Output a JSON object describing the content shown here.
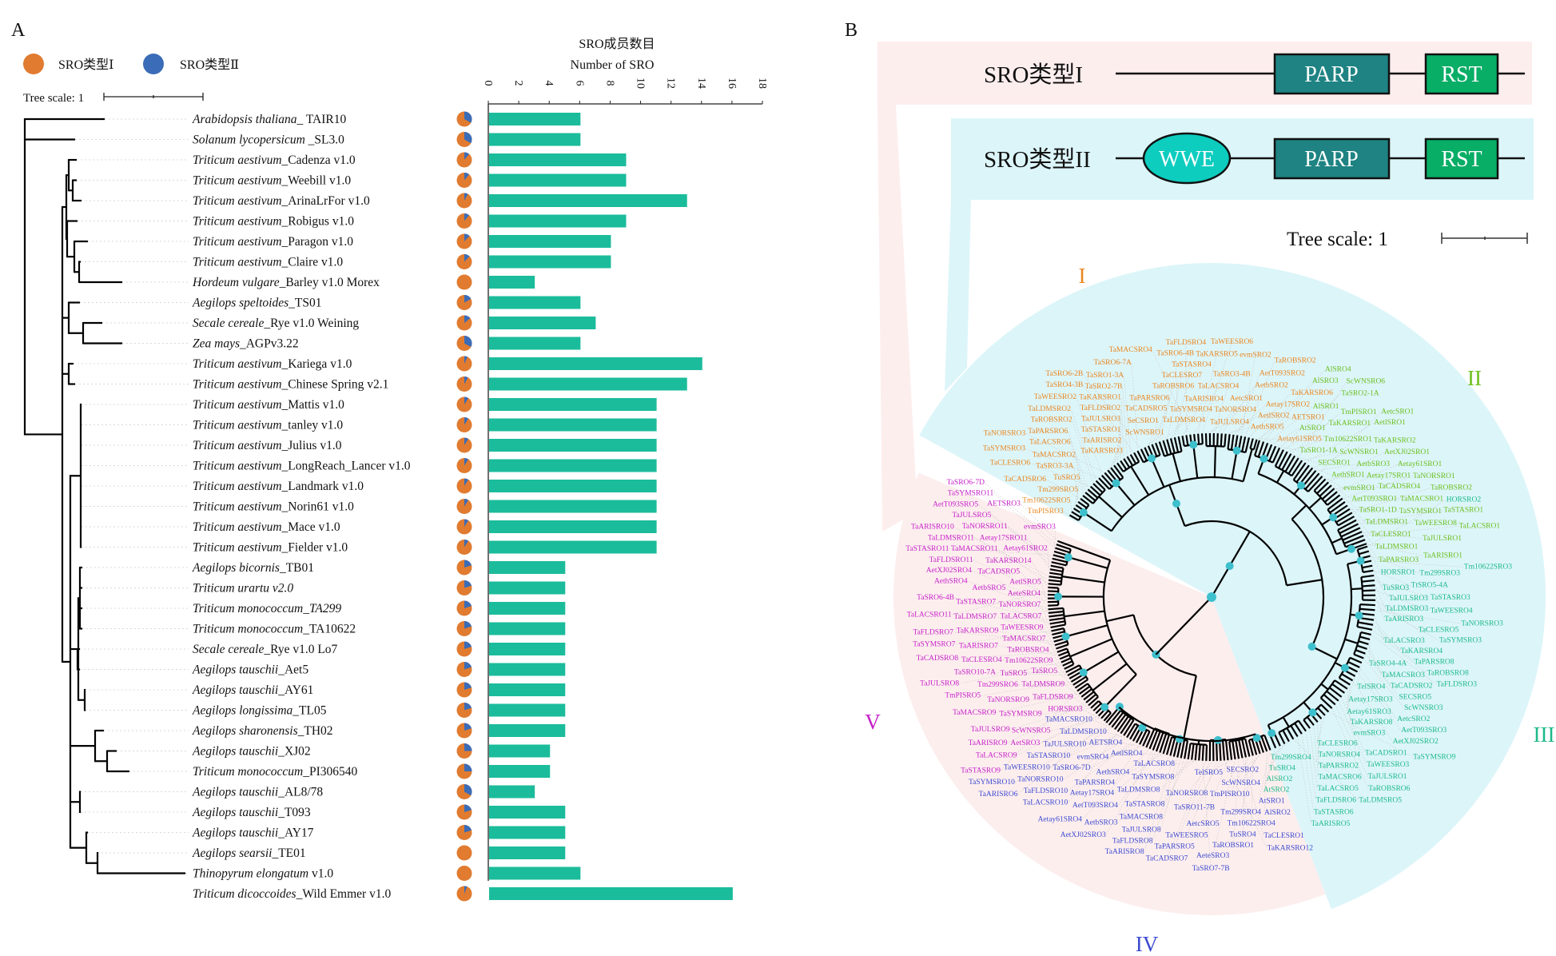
{
  "panel_a": {
    "label": "A",
    "legend": [
      {
        "label": "SRO类型Ⅰ",
        "color": "#e07b30"
      },
      {
        "label": "SRO类型Ⅱ",
        "color": "#3b6cb7"
      }
    ],
    "tree_scale": "Tree scale: 1"
  },
  "chart_data": {
    "type": "bar",
    "title": "SRO成员数目",
    "subtitle": "Number of SRO",
    "xlabel": "Number of SRO",
    "xlim": [
      0,
      18
    ],
    "ticks": [
      "0",
      "2",
      "4",
      "6",
      "8",
      "10",
      "12",
      "14",
      "16",
      "18"
    ],
    "bar_color": "#1bbc9b",
    "categories": [
      {
        "italic": "Arabidopsis thaliana",
        "roman": "_ TAIR10"
      },
      {
        "italic": "Solanum lycopersicum",
        "roman": " _SL3.0"
      },
      {
        "italic": "Triticum aestivum",
        "roman": "_Cadenza v1.0"
      },
      {
        "italic": "Triticum aestivum",
        "roman": "_Weebill v1.0"
      },
      {
        "italic": "Triticum aestivum",
        "roman": "_ArinaLrFor v1.0"
      },
      {
        "italic": "Triticum aestivum",
        "roman": "_Robigus v1.0"
      },
      {
        "italic": "Triticum aestivum",
        "roman": "_Paragon v1.0"
      },
      {
        "italic": "Triticum aestivum",
        "roman": "_Claire v1.0"
      },
      {
        "italic": "Hordeum vulgare",
        "roman": "_Barley v1.0 Morex"
      },
      {
        "italic": "Aegilops speltoides",
        "roman": "_TS01"
      },
      {
        "italic": "Secale cereale",
        "roman": "_Rye v1.0 Weining"
      },
      {
        "italic": "Zea mays",
        "roman": "_AGPv3.22"
      },
      {
        "italic": "Triticum aestivum",
        "roman": "_Kariega v1.0"
      },
      {
        "italic": "Triticum aestivum",
        "roman": "_Chinese Spring v2.1"
      },
      {
        "italic": "Triticum aestivum",
        "roman": "_Mattis v1.0"
      },
      {
        "italic": "Triticum aestivum",
        "roman": "_tanley v1.0"
      },
      {
        "italic": "Triticum aestivum",
        "roman": "_Julius v1.0"
      },
      {
        "italic": "Triticum aestivum",
        "roman": "_LongReach_Lancer v1.0"
      },
      {
        "italic": "Triticum aestivum",
        "roman": "_Landmark v1.0"
      },
      {
        "italic": "Triticum aestivum",
        "roman": "_Norin61 v1.0"
      },
      {
        "italic": "Triticum aestivum",
        "roman": "_Mace v1.0"
      },
      {
        "italic": "Triticum aestivum",
        "roman": "_Fielder v1.0"
      },
      {
        "italic": "Aegilops bicornis",
        "roman": "_TB01"
      },
      {
        "italic": "Triticum urartu v2.0",
        "roman": ""
      },
      {
        "italic": "Triticum monococcum_TA299",
        "roman": ""
      },
      {
        "italic": "Triticum monococcum",
        "roman": "_TA10622"
      },
      {
        "italic": "Secale cereale",
        "roman": "_Rye v1.0 Lo7"
      },
      {
        "italic": "Aegilops tauschii",
        "roman": "_Aet5"
      },
      {
        "italic": "Aegilops tauschii",
        "roman": "_AY61"
      },
      {
        "italic": "Aegilops longissima",
        "roman": "_TL05"
      },
      {
        "italic": "Aegilops sharonensis",
        "roman": "_TH02"
      },
      {
        "italic": "Aegilops tauschii",
        "roman": "_XJ02"
      },
      {
        "italic": "Triticum monococcum",
        "roman": "_PI306540"
      },
      {
        "italic": "Aegilops tauschii",
        "roman": "_AL8/78"
      },
      {
        "italic": "Aegilops tauschii",
        "roman": "_T093"
      },
      {
        "italic": "Aegilops tauschii",
        "roman": "_AY17"
      },
      {
        "italic": "Aegilops searsii",
        "roman": "_TE01"
      },
      {
        "italic": "Thinopyrum elongatum",
        "roman": " v1.0"
      },
      {
        "italic": "Triticum dicoccoides",
        "roman": "_Wild Emmer v1.0"
      }
    ],
    "values": [
      6,
      6,
      9,
      9,
      13,
      9,
      8,
      8,
      3,
      6,
      7,
      6,
      14,
      13,
      11,
      11,
      11,
      11,
      11,
      11,
      11,
      11,
      5,
      5,
      5,
      5,
      5,
      5,
      5,
      5,
      5,
      4,
      4,
      3,
      5,
      5,
      5,
      6,
      16
    ],
    "type_II_fraction": [
      0.33,
      0.33,
      0.11,
      0.11,
      0.08,
      0.11,
      0.12,
      0.12,
      0,
      0.17,
      0.14,
      0.33,
      0.07,
      0.08,
      0.09,
      0.09,
      0.09,
      0.09,
      0.09,
      0.09,
      0.09,
      0.09,
      0.2,
      0.2,
      0.2,
      0.2,
      0.2,
      0.2,
      0.2,
      0.2,
      0.2,
      0.25,
      0.25,
      0.33,
      0.2,
      0.2,
      0,
      0,
      0.06
    ]
  },
  "panel_b": {
    "label": "B",
    "type_I": {
      "label": "SRO类型I",
      "domains": [
        "PARP",
        "RST"
      ]
    },
    "type_II": {
      "label": "SRO类型II",
      "domains": [
        "WWE",
        "PARP",
        "RST"
      ]
    },
    "tree_scale": "Tree scale: 1",
    "colors": {
      "parp": "#1e8382",
      "rst": "#08ad66",
      "wwe": "#0dcdbf",
      "node": "#3dbfcc",
      "pink": "#fdeeee",
      "cyan": "#dcf5f9"
    },
    "clades": [
      {
        "name": "I",
        "color": "#e9861f",
        "leaves": [
          "TmPISRO3",
          "Tm10622SRO5",
          "Tm299SRO5",
          "TuSRO5",
          "TaSRO3-3A",
          "TaCADSRO6",
          "TaMACSRO2",
          "TaLACSRO6",
          "TaPARSRO6",
          "TaCLESRO6",
          "TaROBSRO2",
          "TaLDMSRO2",
          "TaSYMSRO3",
          "TaWEESRO2",
          "TaNORSRO3",
          "TaKARSRO3",
          "TaARISRO2",
          "TaSTASRO1",
          "TaJULSRO3",
          "TaFLDSRO2",
          "TaKARSRO1",
          "TaSRO2-7B",
          "TaSRO1-3A",
          "TaSRO4-3B",
          "TaSRO6-7A",
          "TaSRO6-2B",
          "ScWNSRO1",
          "SeCSRO1",
          "TaCADSRO5",
          "TaPARSRO6",
          "TaROBSRO6",
          "TaLDMSRO4",
          "TaCLESRO7",
          "TaSYMSRO4",
          "TaSTASRO4",
          "TaSRO6-4B",
          "TaARISRO4",
          "TaFLDSRO4",
          "TaMACSRO4",
          "TaLACSRO4",
          "TaKARSRO5",
          "TaWEESRO6",
          "TaJULSRO4",
          "TaNORSRO4",
          "TaSRO3-4B",
          "AetcSRO1",
          "AetbSRO2",
          "AethSRO5",
          "AetlSRO2",
          "Aetay17SRO2",
          "AetT093SRO2",
          "evmSRO2",
          "TaROBSRO2",
          "TaKARSRO6",
          "Aetay61SRO5",
          "AETSRO1"
        ]
      },
      {
        "name": "II",
        "color": "#6cbf1e",
        "leaves": [
          "AlSRO3",
          "AlSRO4",
          "AlSRO1",
          "AtSRO1",
          "TaSRO1-1A",
          "TaSRO2-1A",
          "TaKARSRO1",
          "Tm10622SRO1",
          "TmPISRO1",
          "SECSRO1",
          "ScWNSRO6",
          "ScWNSRO1",
          "AetlSRO1",
          "AethSRO1",
          "TaKARSRO2",
          "AetbSRO3",
          "AetcSRO1",
          "evmSRO1",
          "Aetay17SRO1",
          "AetXJ02SRO1",
          "AetT093SRO1",
          "TaCADSRO4",
          "Aetay61SRO1",
          "TaSRO1-1D",
          "TaNORSRO1",
          "TaMACSRO1",
          "TaLDMSRO1",
          "TaSYMSRO1",
          "TaROBSRO2",
          "TaCLESRO1",
          "TaWEESRO8",
          "TaSTASRO1",
          "TaLDMSRO1",
          "TaJULSRO1",
          "TaLACSRO1",
          "TaPARSRO3",
          "TaARISRO1"
        ]
      },
      {
        "name": "III",
        "color": "#1db98a",
        "leaves": [
          "HORSRO2",
          "HORSRO1",
          "Tm299SRO3",
          "Tm10622SRO3",
          "TuSRO3",
          "TtSRO5-4A",
          "TaJULSRO3",
          "TaSTASRO3",
          "TaLDMSRO3",
          "TaWEESRO4",
          "TaARISRO3",
          "TaCLESRO5",
          "TaSYMSRO3",
          "TaNORSRO3",
          "TaLACSRO3",
          "TaKARSRO4",
          "TaPARSRO8",
          "TaROBSRO8",
          "TaFLDSRO3",
          "TaSRO4-4A",
          "TaMACSRO3",
          "TaCADSRO2",
          "SECSRO5",
          "ScWNSRO3",
          "TelSRO4",
          "AetcSRO2",
          "AetT093SRO3",
          "Aetay17SRO3",
          "AetXJ02SRO2",
          "Aetay61SRO3",
          "TaKARSRO8",
          "evmSRO3",
          "TaCADSRO1",
          "TaWEESRO3",
          "TaJULSRO1",
          "TaROBSRO6",
          "TaSYMSRO9",
          "TaCLESRO6",
          "TaNORSRO4",
          "TaPARSRO2",
          "TaMACSRO6",
          "TaLACSRO5",
          "TaFLDSRO6",
          "TaSTASRO6",
          "TaARISRO5",
          "TaLDMSRO5",
          "Tm299SRO4",
          "TuSRO4",
          "AlSRO2",
          "AtSRO2"
        ]
      },
      {
        "name": "IV",
        "color": "#3b4ad0",
        "leaves": [
          "AtSRO1",
          "AlSRO2",
          "SECSRO2",
          "ScWNSRO4",
          "Tm299SRO4",
          "Tm10622SRO4",
          "TmPISRO10",
          "TuSRO4",
          "TaCLESRO1",
          "TaROBSRO1",
          "AeteSRO3",
          "TelSRO5",
          "AetcSRO5",
          "TaKARSRO12",
          "TaSRO11-7B",
          "TaWEESRO5",
          "TaNORSRO8",
          "TaPARSRO5",
          "TaCADSRO7",
          "TaSRO7-7B",
          "TaLACSRO8",
          "TaSYMSRO8",
          "TaLDMSRO8",
          "TaSTASRO8",
          "TaMACSRO8",
          "TaJULSRO8",
          "TaFLDSRO8",
          "TaARISRO8",
          "AetbSRO3",
          "AetlSRO4",
          "AethSRO4",
          "Aetay17SRO4",
          "AetT093SRO4",
          "AetXJ02SRO3",
          "Aetay61SRO4",
          "AETSRO4",
          "evmSRO4",
          "TaPARSRO4",
          "TaSRO6-7D",
          "TaFLDSRO10",
          "TaLDMSRO10",
          "TaNORSRO10",
          "TaJULSRO10",
          "TaSTASRO10",
          "TaLACSRO10",
          "TaMACSRO10",
          "TaWEESRO10",
          "TaSYMSRO10",
          "TaARISRO6"
        ]
      },
      {
        "name": "V",
        "color": "#c51fc9",
        "leaves": [
          "HORSRO3",
          "ScWNSRO5",
          "AetSRO3",
          "TaLACSRO9",
          "TaFLDSRO9",
          "TaSYMSRO9",
          "TaJULSRO9",
          "TaARISRO9",
          "TaLDMSRO9",
          "TaNORSRO9",
          "TaMACSRO9",
          "TaSTASRO9",
          "TaSRO5",
          "Tm299SRO6",
          "TmPISRO5",
          "Tm10622SRO9",
          "TuSRO5",
          "TaSRO10-7A",
          "TaROBSRO4",
          "TaCLESRO4",
          "TaJULSRO8",
          "TaMACSRO7",
          "TaARISRO7",
          "TaCADSRO8",
          "TaWEESRO9",
          "TaKARSRO9",
          "TaFLDSRO7",
          "TaLACSRO7",
          "TaLDMSRO7",
          "TaSYMSRO7",
          "TaNORSRO7",
          "TaSTASRO7",
          "TaSRO6-4B",
          "AeteSRO4",
          "AetbSRO5",
          "AethSRO4",
          "AetlSRO5",
          "AetXJ02SRO4",
          "TaCADSRO5",
          "TaFLDSRO11",
          "TaLACSRO11",
          "TaKARSRO14",
          "TaMACSRO11",
          "TaLDMSRO11",
          "TaARISRO10",
          "Aetay61SRO2",
          "Aetay17SRO11",
          "TaNORSRO11",
          "TaJULSRO5",
          "AetT093SRO5",
          "TaSTASRO11",
          "evmSRO3",
          "TaSYMSRO11",
          "TaSRO6-7D",
          "AETSRO3"
        ]
      }
    ]
  }
}
